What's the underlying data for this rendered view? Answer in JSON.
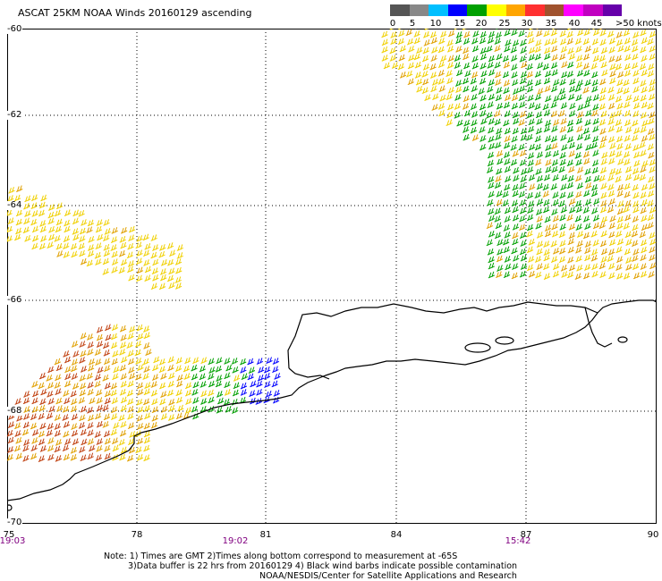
{
  "title": "ASCAT 25KM NOAA Winds 20160129 ascending",
  "legend": {
    "labels": [
      "0",
      "5",
      "10",
      "15",
      "20",
      "25",
      "30",
      "35",
      "40",
      "45"
    ],
    "units": ">50 knots",
    "colors": [
      "#555555",
      "#888888",
      "#00bfff",
      "#0000ff",
      "#00a000",
      "#ffff00",
      "#ffa500",
      "#ff3030",
      "#a0522d",
      "#ff00ff",
      "#c000c0",
      "#6600aa"
    ]
  },
  "lat_labels": [
    "-60",
    "-62",
    "-64",
    "-66",
    "-68",
    "-70"
  ],
  "lon_labels": [
    "75",
    "78",
    "81",
    "84",
    "87",
    "90"
  ],
  "time_labels": [
    "19:03",
    "19:02",
    "15:42"
  ],
  "notes": [
    "Note: 1) Times are GMT 2)Times along bottom correspond to measurement at -65S",
    "3)Data buffer is 22 hrs from 20160129 4) Black wind barbs indicate possible contamination",
    "NOAA/NESDIS/Center for Satellite Applications and Research"
  ],
  "colors": {
    "wind_15_20": "#00a000",
    "wind_20_25": "#f0d000",
    "wind_25_30": "#e0a000",
    "wind_30_35": "#c04010",
    "wind_10_15": "#0000ff",
    "time_label": "#800080"
  }
}
